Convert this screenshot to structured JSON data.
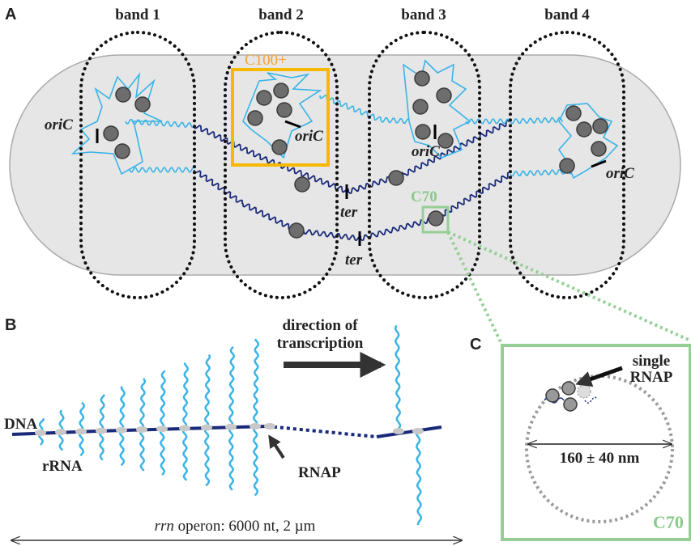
{
  "panels": {
    "a": {
      "label": "A",
      "bands": [
        "band 1",
        "band 2",
        "band 3",
        "band 4"
      ],
      "cluster_label": "C100+",
      "origin_labels": [
        "oriC",
        "oriC",
        "oriC",
        "oriC"
      ],
      "terminus_labels": [
        "ter",
        "ter"
      ],
      "zoom_label": "C70"
    },
    "b": {
      "label": "B",
      "dna_label": "DNA",
      "rrna_label": "rRNA",
      "rnap_label": "RNAP",
      "direction_label": [
        "direction of",
        "transcription"
      ],
      "operon_label": {
        "gene": "rrn",
        "text": " operon: 6000 nt, 2 µm"
      }
    },
    "c": {
      "label": "C",
      "rnap_label": [
        "single",
        "RNAP"
      ],
      "diameter_label": "160 ± 40 nm",
      "cluster_label": "C70"
    }
  }
}
